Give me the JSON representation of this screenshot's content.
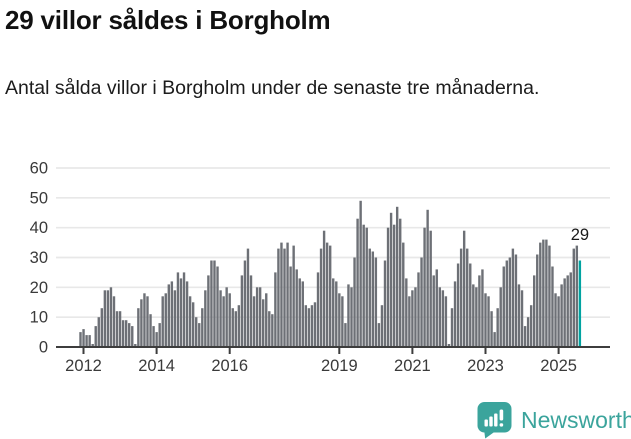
{
  "header": {
    "title": "29 villor såldes i Borgholm",
    "subtitle": "Antal sålda villor i Borgholm under de senaste tre månaderna."
  },
  "footer": {
    "brand": "Newsworthy"
  },
  "chart_data": {
    "type": "bar",
    "title": "29 villor såldes i Borgholm",
    "subtitle": "Antal sålda villor i Borgholm under de senaste tre månaderna.",
    "unit": "sålda villor (rullande 3 månader)",
    "frequency": "monthly",
    "start_month": "2011-12",
    "end_month": "2025-08",
    "values": [
      5,
      6,
      4,
      4,
      1,
      7,
      10,
      13,
      19,
      19,
      20,
      17,
      12,
      12,
      9,
      9,
      8,
      7,
      1,
      13,
      16,
      18,
      17,
      11,
      7,
      5,
      8,
      17,
      18,
      21,
      22,
      19,
      25,
      23,
      25,
      22,
      17,
      15,
      10,
      8,
      13,
      19,
      24,
      29,
      29,
      27,
      19,
      17,
      20,
      18,
      13,
      12,
      14,
      24,
      29,
      33,
      24,
      17,
      20,
      20,
      16,
      18,
      12,
      11,
      25,
      33,
      35,
      33,
      35,
      27,
      34,
      26,
      23,
      22,
      14,
      13,
      14,
      15,
      25,
      33,
      39,
      35,
      34,
      23,
      22,
      18,
      17,
      8,
      21,
      20,
      30,
      43,
      49,
      41,
      40,
      33,
      32,
      30,
      8,
      14,
      29,
      40,
      45,
      41,
      47,
      43,
      35,
      23,
      17,
      19,
      20,
      25,
      30,
      40,
      46,
      39,
      24,
      26,
      20,
      19,
      17,
      1,
      13,
      22,
      28,
      33,
      39,
      33,
      28,
      21,
      20,
      24,
      26,
      18,
      17,
      12,
      5,
      13,
      20,
      27,
      29,
      30,
      33,
      31,
      21,
      19,
      7,
      10,
      14,
      24,
      31,
      35,
      36,
      36,
      34,
      27,
      18,
      17,
      21,
      23,
      24,
      25,
      33,
      34,
      29
    ],
    "highlight_last": true,
    "last_value_label": "29",
    "y_ticks": [
      0,
      10,
      20,
      30,
      40,
      50,
      60
    ],
    "ylim": [
      0,
      60
    ],
    "x_ticks": [
      {
        "label": "2012",
        "month_index": 1
      },
      {
        "label": "2014",
        "month_index": 25
      },
      {
        "label": "2016",
        "month_index": 49
      },
      {
        "label": "2019",
        "month_index": 85
      },
      {
        "label": "2021",
        "month_index": 109
      },
      {
        "label": "2023",
        "month_index": 133
      },
      {
        "label": "2025",
        "month_index": 157
      }
    ],
    "grid": true,
    "legend": "none",
    "colors": {
      "bar": "#6d7076",
      "highlight": "#00a3a1",
      "gridline": "#e8e8e8",
      "axis": "#3d3d3d",
      "brand_teal": "#3ba49c"
    }
  }
}
